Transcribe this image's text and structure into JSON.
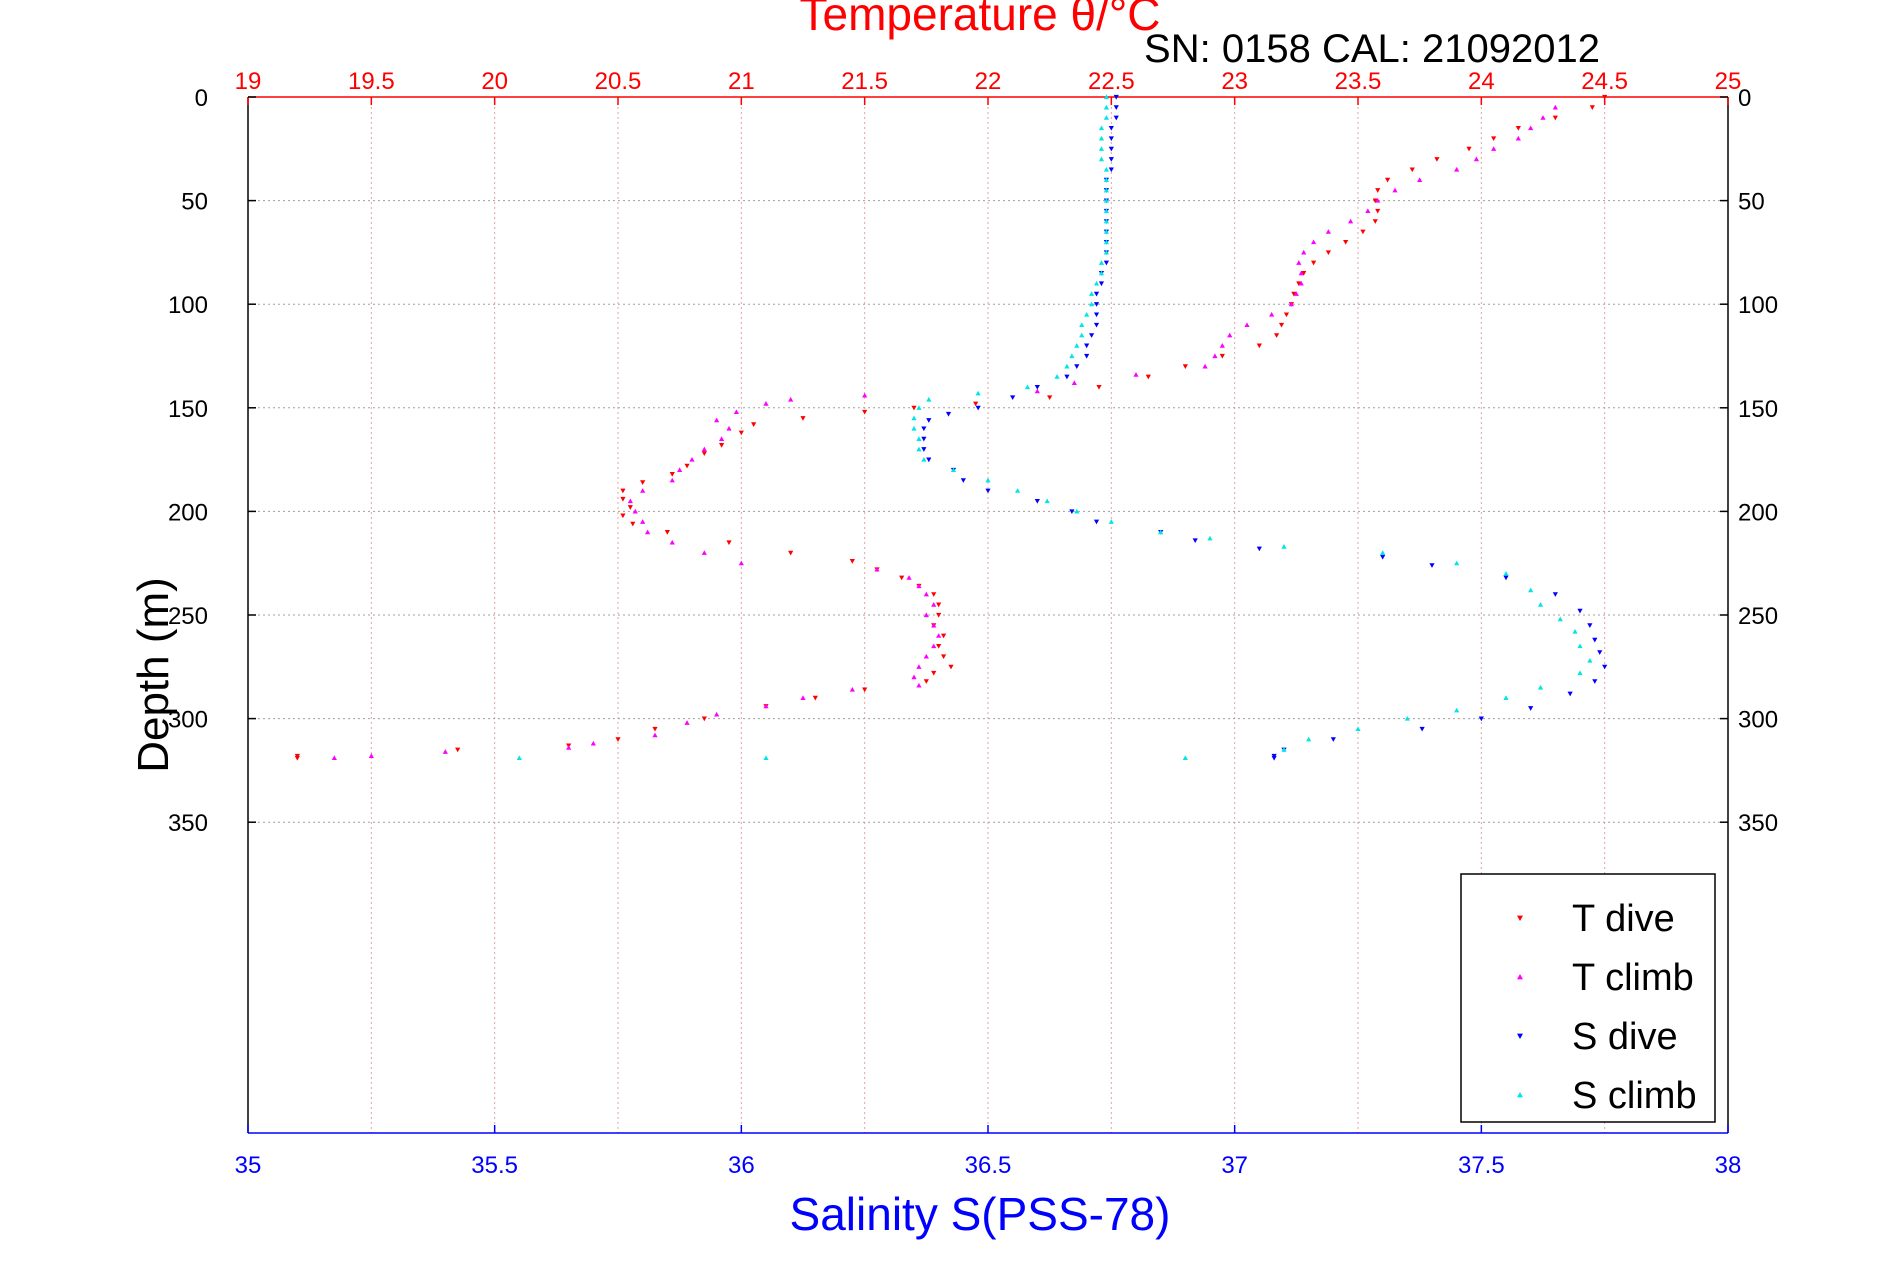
{
  "chart_data": {
    "type": "scatter",
    "title": "Temperature θ/°C",
    "subtitle": "SN: 0158  CAL: 21092012",
    "xlabel": "Salinity S(PSS-78)",
    "x2label": "Temperature θ/°C",
    "ylabel": "Depth (m)",
    "xlim": [
      35,
      38
    ],
    "x2lim": [
      19,
      25
    ],
    "ylim": [
      0,
      500
    ],
    "y_reversed": true,
    "grid": true,
    "legend_position": "bottom-right",
    "x_ticks": [
      "35",
      "35.5",
      "36",
      "36.5",
      "37",
      "37.5",
      "38"
    ],
    "x2_ticks": [
      "19",
      "19.5",
      "20",
      "20.5",
      "21",
      "21.5",
      "22",
      "22.5",
      "23",
      "23.5",
      "24",
      "24.5",
      "25"
    ],
    "y_ticks": [
      "0",
      "50",
      "100",
      "150",
      "200",
      "250",
      "300",
      "350"
    ],
    "colors": {
      "t_dive": "#ff0000",
      "t_climb": "#ff00ff",
      "s_dive": "#0000ff",
      "s_climb": "#00e5e5",
      "temperature_axis": "#ff0000",
      "salinity_axis": "#0000ff",
      "grid": "#c8c8c8"
    },
    "series": [
      {
        "name": "T dive",
        "axis": "temperature",
        "marker": "triangle-down",
        "points": [
          [
            24.5,
            0
          ],
          [
            24.45,
            5
          ],
          [
            24.3,
            10
          ],
          [
            24.15,
            15
          ],
          [
            24.05,
            20
          ],
          [
            23.95,
            25
          ],
          [
            23.82,
            30
          ],
          [
            23.72,
            35
          ],
          [
            23.62,
            40
          ],
          [
            23.58,
            45
          ],
          [
            23.57,
            50
          ],
          [
            23.58,
            55
          ],
          [
            23.57,
            60
          ],
          [
            23.52,
            65
          ],
          [
            23.45,
            70
          ],
          [
            23.38,
            75
          ],
          [
            23.32,
            80
          ],
          [
            23.28,
            85
          ],
          [
            23.26,
            90
          ],
          [
            23.24,
            95
          ],
          [
            23.23,
            100
          ],
          [
            23.21,
            105
          ],
          [
            23.19,
            110
          ],
          [
            23.17,
            115
          ],
          [
            23.1,
            120
          ],
          [
            22.95,
            125
          ],
          [
            22.8,
            130
          ],
          [
            22.65,
            135
          ],
          [
            22.45,
            140
          ],
          [
            22.25,
            145
          ],
          [
            21.95,
            148
          ],
          [
            21.7,
            150
          ],
          [
            21.5,
            152
          ],
          [
            21.25,
            155
          ],
          [
            21.05,
            158
          ],
          [
            21.0,
            162
          ],
          [
            20.92,
            168
          ],
          [
            20.85,
            172
          ],
          [
            20.78,
            178
          ],
          [
            20.72,
            182
          ],
          [
            20.6,
            186
          ],
          [
            20.52,
            190
          ],
          [
            20.52,
            194
          ],
          [
            20.55,
            198
          ],
          [
            20.52,
            202
          ],
          [
            20.56,
            206
          ],
          [
            20.7,
            210
          ],
          [
            20.95,
            215
          ],
          [
            21.2,
            220
          ],
          [
            21.45,
            224
          ],
          [
            21.55,
            228
          ],
          [
            21.65,
            232
          ],
          [
            21.72,
            236
          ],
          [
            21.78,
            240
          ],
          [
            21.8,
            245
          ],
          [
            21.8,
            250
          ],
          [
            21.78,
            255
          ],
          [
            21.82,
            260
          ],
          [
            21.8,
            265
          ],
          [
            21.82,
            270
          ],
          [
            21.85,
            275
          ],
          [
            21.78,
            278
          ],
          [
            21.75,
            282
          ],
          [
            21.5,
            286
          ],
          [
            21.3,
            290
          ],
          [
            21.1,
            294
          ],
          [
            20.85,
            300
          ],
          [
            20.65,
            305
          ],
          [
            20.5,
            310
          ],
          [
            20.3,
            313
          ],
          [
            19.85,
            315
          ],
          [
            19.2,
            318
          ],
          [
            19.2,
            319
          ]
        ]
      },
      {
        "name": "T climb",
        "axis": "temperature",
        "marker": "triangle-up",
        "points": [
          [
            24.3,
            5
          ],
          [
            24.25,
            10
          ],
          [
            24.2,
            15
          ],
          [
            24.15,
            20
          ],
          [
            24.05,
            25
          ],
          [
            23.98,
            30
          ],
          [
            23.9,
            35
          ],
          [
            23.75,
            40
          ],
          [
            23.65,
            45
          ],
          [
            23.58,
            50
          ],
          [
            23.54,
            55
          ],
          [
            23.47,
            60
          ],
          [
            23.38,
            65
          ],
          [
            23.32,
            70
          ],
          [
            23.28,
            75
          ],
          [
            23.26,
            80
          ],
          [
            23.27,
            85
          ],
          [
            23.27,
            90
          ],
          [
            23.25,
            95
          ],
          [
            23.23,
            100
          ],
          [
            23.15,
            105
          ],
          [
            23.05,
            110
          ],
          [
            22.98,
            115
          ],
          [
            22.95,
            120
          ],
          [
            22.92,
            125
          ],
          [
            22.88,
            130
          ],
          [
            22.6,
            134
          ],
          [
            22.35,
            138
          ],
          [
            22.2,
            142
          ],
          [
            21.5,
            144
          ],
          [
            21.2,
            146
          ],
          [
            21.1,
            148
          ],
          [
            20.98,
            152
          ],
          [
            20.9,
            156
          ],
          [
            20.95,
            160
          ],
          [
            20.92,
            165
          ],
          [
            20.85,
            170
          ],
          [
            20.8,
            175
          ],
          [
            20.75,
            180
          ],
          [
            20.72,
            185
          ],
          [
            20.6,
            190
          ],
          [
            20.55,
            195
          ],
          [
            20.57,
            200
          ],
          [
            20.6,
            205
          ],
          [
            20.62,
            210
          ],
          [
            20.72,
            215
          ],
          [
            20.85,
            220
          ],
          [
            21.0,
            225
          ],
          [
            21.55,
            228
          ],
          [
            21.68,
            232
          ],
          [
            21.72,
            236
          ],
          [
            21.75,
            240
          ],
          [
            21.78,
            245
          ],
          [
            21.75,
            250
          ],
          [
            21.78,
            255
          ],
          [
            21.8,
            260
          ],
          [
            21.78,
            265
          ],
          [
            21.75,
            270
          ],
          [
            21.72,
            275
          ],
          [
            21.7,
            280
          ],
          [
            21.72,
            284
          ],
          [
            21.45,
            286
          ],
          [
            21.25,
            290
          ],
          [
            21.1,
            294
          ],
          [
            20.9,
            298
          ],
          [
            20.78,
            302
          ],
          [
            20.65,
            308
          ],
          [
            20.4,
            312
          ],
          [
            20.3,
            314
          ],
          [
            19.8,
            316
          ],
          [
            19.5,
            318
          ],
          [
            19.35,
            319
          ]
        ]
      },
      {
        "name": "S dive",
        "axis": "salinity",
        "marker": "triangle-down",
        "points": [
          [
            36.76,
            0
          ],
          [
            36.76,
            5
          ],
          [
            36.76,
            10
          ],
          [
            36.75,
            15
          ],
          [
            36.75,
            20
          ],
          [
            36.75,
            25
          ],
          [
            36.75,
            30
          ],
          [
            36.75,
            35
          ],
          [
            36.74,
            40
          ],
          [
            36.74,
            45
          ],
          [
            36.74,
            50
          ],
          [
            36.74,
            55
          ],
          [
            36.74,
            60
          ],
          [
            36.74,
            65
          ],
          [
            36.74,
            70
          ],
          [
            36.74,
            75
          ],
          [
            36.74,
            80
          ],
          [
            36.73,
            85
          ],
          [
            36.73,
            90
          ],
          [
            36.72,
            95
          ],
          [
            36.72,
            100
          ],
          [
            36.72,
            105
          ],
          [
            36.72,
            110
          ],
          [
            36.71,
            115
          ],
          [
            36.7,
            120
          ],
          [
            36.7,
            125
          ],
          [
            36.68,
            130
          ],
          [
            36.66,
            135
          ],
          [
            36.6,
            140
          ],
          [
            36.55,
            145
          ],
          [
            36.48,
            150
          ],
          [
            36.42,
            153
          ],
          [
            36.38,
            156
          ],
          [
            36.37,
            160
          ],
          [
            36.37,
            165
          ],
          [
            36.37,
            170
          ],
          [
            36.38,
            175
          ],
          [
            36.43,
            180
          ],
          [
            36.45,
            185
          ],
          [
            36.5,
            190
          ],
          [
            36.6,
            195
          ],
          [
            36.67,
            200
          ],
          [
            36.72,
            205
          ],
          [
            36.85,
            210
          ],
          [
            36.92,
            214
          ],
          [
            37.05,
            218
          ],
          [
            37.3,
            222
          ],
          [
            37.4,
            226
          ],
          [
            37.55,
            232
          ],
          [
            37.65,
            240
          ],
          [
            37.7,
            248
          ],
          [
            37.72,
            255
          ],
          [
            37.73,
            262
          ],
          [
            37.74,
            268
          ],
          [
            37.75,
            275
          ],
          [
            37.73,
            282
          ],
          [
            37.68,
            288
          ],
          [
            37.6,
            295
          ],
          [
            37.5,
            300
          ],
          [
            37.38,
            305
          ],
          [
            37.2,
            310
          ],
          [
            37.1,
            315
          ],
          [
            37.08,
            318
          ],
          [
            37.08,
            319
          ]
        ]
      },
      {
        "name": "S climb",
        "axis": "salinity",
        "marker": "triangle-up",
        "points": [
          [
            36.74,
            0
          ],
          [
            36.74,
            5
          ],
          [
            36.74,
            10
          ],
          [
            36.73,
            15
          ],
          [
            36.73,
            20
          ],
          [
            36.73,
            25
          ],
          [
            36.73,
            30
          ],
          [
            36.74,
            35
          ],
          [
            36.74,
            40
          ],
          [
            36.74,
            45
          ],
          [
            36.74,
            50
          ],
          [
            36.74,
            55
          ],
          [
            36.74,
            60
          ],
          [
            36.74,
            65
          ],
          [
            36.74,
            70
          ],
          [
            36.74,
            75
          ],
          [
            36.73,
            80
          ],
          [
            36.73,
            85
          ],
          [
            36.72,
            90
          ],
          [
            36.71,
            95
          ],
          [
            36.71,
            100
          ],
          [
            36.7,
            105
          ],
          [
            36.69,
            110
          ],
          [
            36.69,
            115
          ],
          [
            36.68,
            120
          ],
          [
            36.67,
            125
          ],
          [
            36.66,
            130
          ],
          [
            36.64,
            135
          ],
          [
            36.58,
            140
          ],
          [
            36.48,
            143
          ],
          [
            36.38,
            146
          ],
          [
            36.36,
            150
          ],
          [
            36.35,
            155
          ],
          [
            36.35,
            160
          ],
          [
            36.36,
            165
          ],
          [
            36.36,
            170
          ],
          [
            36.37,
            175
          ],
          [
            36.43,
            180
          ],
          [
            36.5,
            185
          ],
          [
            36.56,
            190
          ],
          [
            36.62,
            195
          ],
          [
            36.68,
            200
          ],
          [
            36.75,
            205
          ],
          [
            36.85,
            210
          ],
          [
            36.95,
            213
          ],
          [
            37.1,
            217
          ],
          [
            37.3,
            220
          ],
          [
            37.45,
            225
          ],
          [
            37.55,
            230
          ],
          [
            37.6,
            238
          ],
          [
            37.62,
            245
          ],
          [
            37.66,
            252
          ],
          [
            37.69,
            258
          ],
          [
            37.7,
            265
          ],
          [
            37.72,
            272
          ],
          [
            37.7,
            278
          ],
          [
            37.62,
            285
          ],
          [
            37.55,
            290
          ],
          [
            37.45,
            296
          ],
          [
            37.35,
            300
          ],
          [
            37.25,
            305
          ],
          [
            37.15,
            310
          ],
          [
            37.1,
            315
          ],
          [
            36.9,
            319
          ],
          [
            36.05,
            319
          ],
          [
            35.55,
            319
          ]
        ]
      }
    ]
  }
}
